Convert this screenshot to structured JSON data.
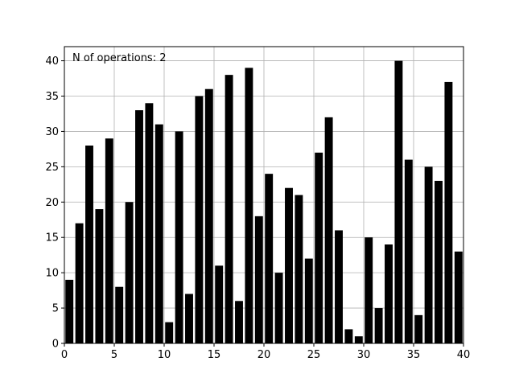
{
  "annotation": "N of operations: 2",
  "chart_data": {
    "type": "bar",
    "title": "",
    "xlabel": "",
    "ylabel": "",
    "xlim": [
      0,
      40
    ],
    "ylim": [
      0,
      42
    ],
    "xticks": [
      0,
      5,
      10,
      15,
      20,
      25,
      30,
      35,
      40
    ],
    "yticks": [
      0,
      5,
      10,
      15,
      20,
      25,
      30,
      35,
      40
    ],
    "grid": true,
    "bar_color": "#000000",
    "x": [
      0.5,
      1.5,
      2.5,
      3.5,
      4.5,
      5.5,
      6.5,
      7.5,
      8.5,
      9.5,
      10.5,
      11.5,
      12.5,
      13.5,
      14.5,
      15.5,
      16.5,
      17.5,
      18.5,
      19.5,
      20.5,
      21.5,
      22.5,
      23.5,
      24.5,
      25.5,
      26.5,
      27.5,
      28.5,
      29.5,
      30.5,
      31.5,
      32.5,
      33.5,
      34.5,
      35.5,
      36.5,
      37.5,
      38.5,
      39.5
    ],
    "values": [
      9,
      17,
      28,
      19,
      29,
      8,
      20,
      33,
      34,
      31,
      3,
      30,
      7,
      35,
      36,
      11,
      38,
      6,
      39,
      18,
      24,
      10,
      22,
      21,
      12,
      27,
      32,
      16,
      2,
      1,
      15,
      5,
      14,
      40,
      26,
      4,
      25,
      23,
      37,
      13
    ]
  }
}
